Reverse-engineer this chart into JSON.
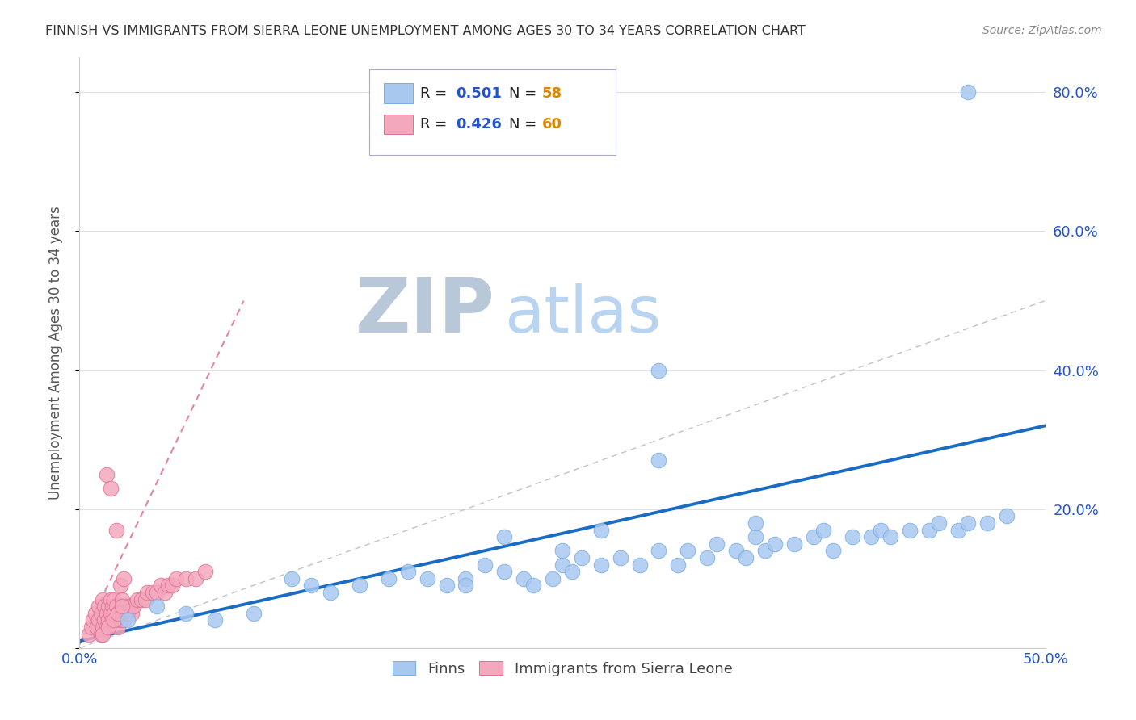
{
  "title": "FINNISH VS IMMIGRANTS FROM SIERRA LEONE UNEMPLOYMENT AMONG AGES 30 TO 34 YEARS CORRELATION CHART",
  "source": "Source: ZipAtlas.com",
  "ylabel": "Unemployment Among Ages 30 to 34 years",
  "xlim": [
    0.0,
    0.5
  ],
  "ylim": [
    0.0,
    0.85
  ],
  "finn_color": "#a8c8f0",
  "finn_edge_color": "#7aaedd",
  "sl_color": "#f4a8be",
  "sl_edge_color": "#e07090",
  "finn_R": 0.501,
  "finn_N": 58,
  "sl_R": 0.426,
  "sl_N": 60,
  "finn_line_color": "#1a6bc4",
  "sl_line_color": "#e07090",
  "ref_line_color": "#c0c0d0",
  "watermark_ZIP_color": "#b8c8d8",
  "watermark_atlas_color": "#b8d4f0",
  "legend_R_color": "#2255cc",
  "legend_N_color": "#dd8800",
  "tick_color_x": "#2255cc",
  "tick_color_y_right": "#2255cc",
  "background_color": "#ffffff",
  "grid_color": "#e0e0ea",
  "title_color": "#333333",
  "axis_label_color": "#555555"
}
